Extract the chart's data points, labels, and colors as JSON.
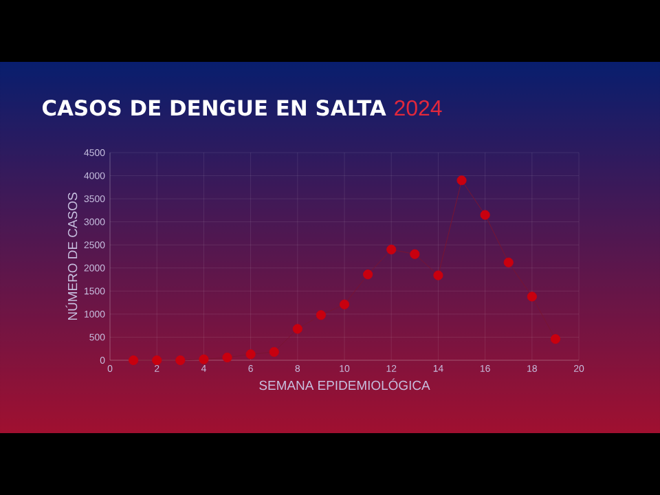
{
  "chart_data": {
    "type": "line",
    "title": "CASOS DE DENGUE EN SALTA",
    "subtitle": "2024",
    "xlabel": "SEMANA EPIDEMIOLÓGICA",
    "ylabel": "NÚMERO DE CASOS",
    "x": [
      1,
      2,
      3,
      4,
      5,
      6,
      7,
      8,
      9,
      10,
      11,
      12,
      13,
      14,
      15,
      16,
      17,
      18,
      19
    ],
    "series": [
      {
        "color": "#c8000f",
        "values": [
          0,
          0,
          0,
          20,
          60,
          130,
          180,
          680,
          980,
          1210,
          1860,
          2400,
          2300,
          1840,
          3900,
          3150,
          2120,
          1380,
          460
        ]
      }
    ],
    "xlim": [
      0,
      20
    ],
    "xticks": [
      0,
      2,
      4,
      6,
      8,
      10,
      12,
      14,
      16,
      18,
      20
    ],
    "ylim": [
      0,
      4500
    ],
    "yticks": [
      0,
      500,
      1000,
      1500,
      2000,
      2500,
      3000,
      3500,
      4000,
      4500
    ],
    "grid": true,
    "marker": "circle",
    "line_style": "solid"
  }
}
